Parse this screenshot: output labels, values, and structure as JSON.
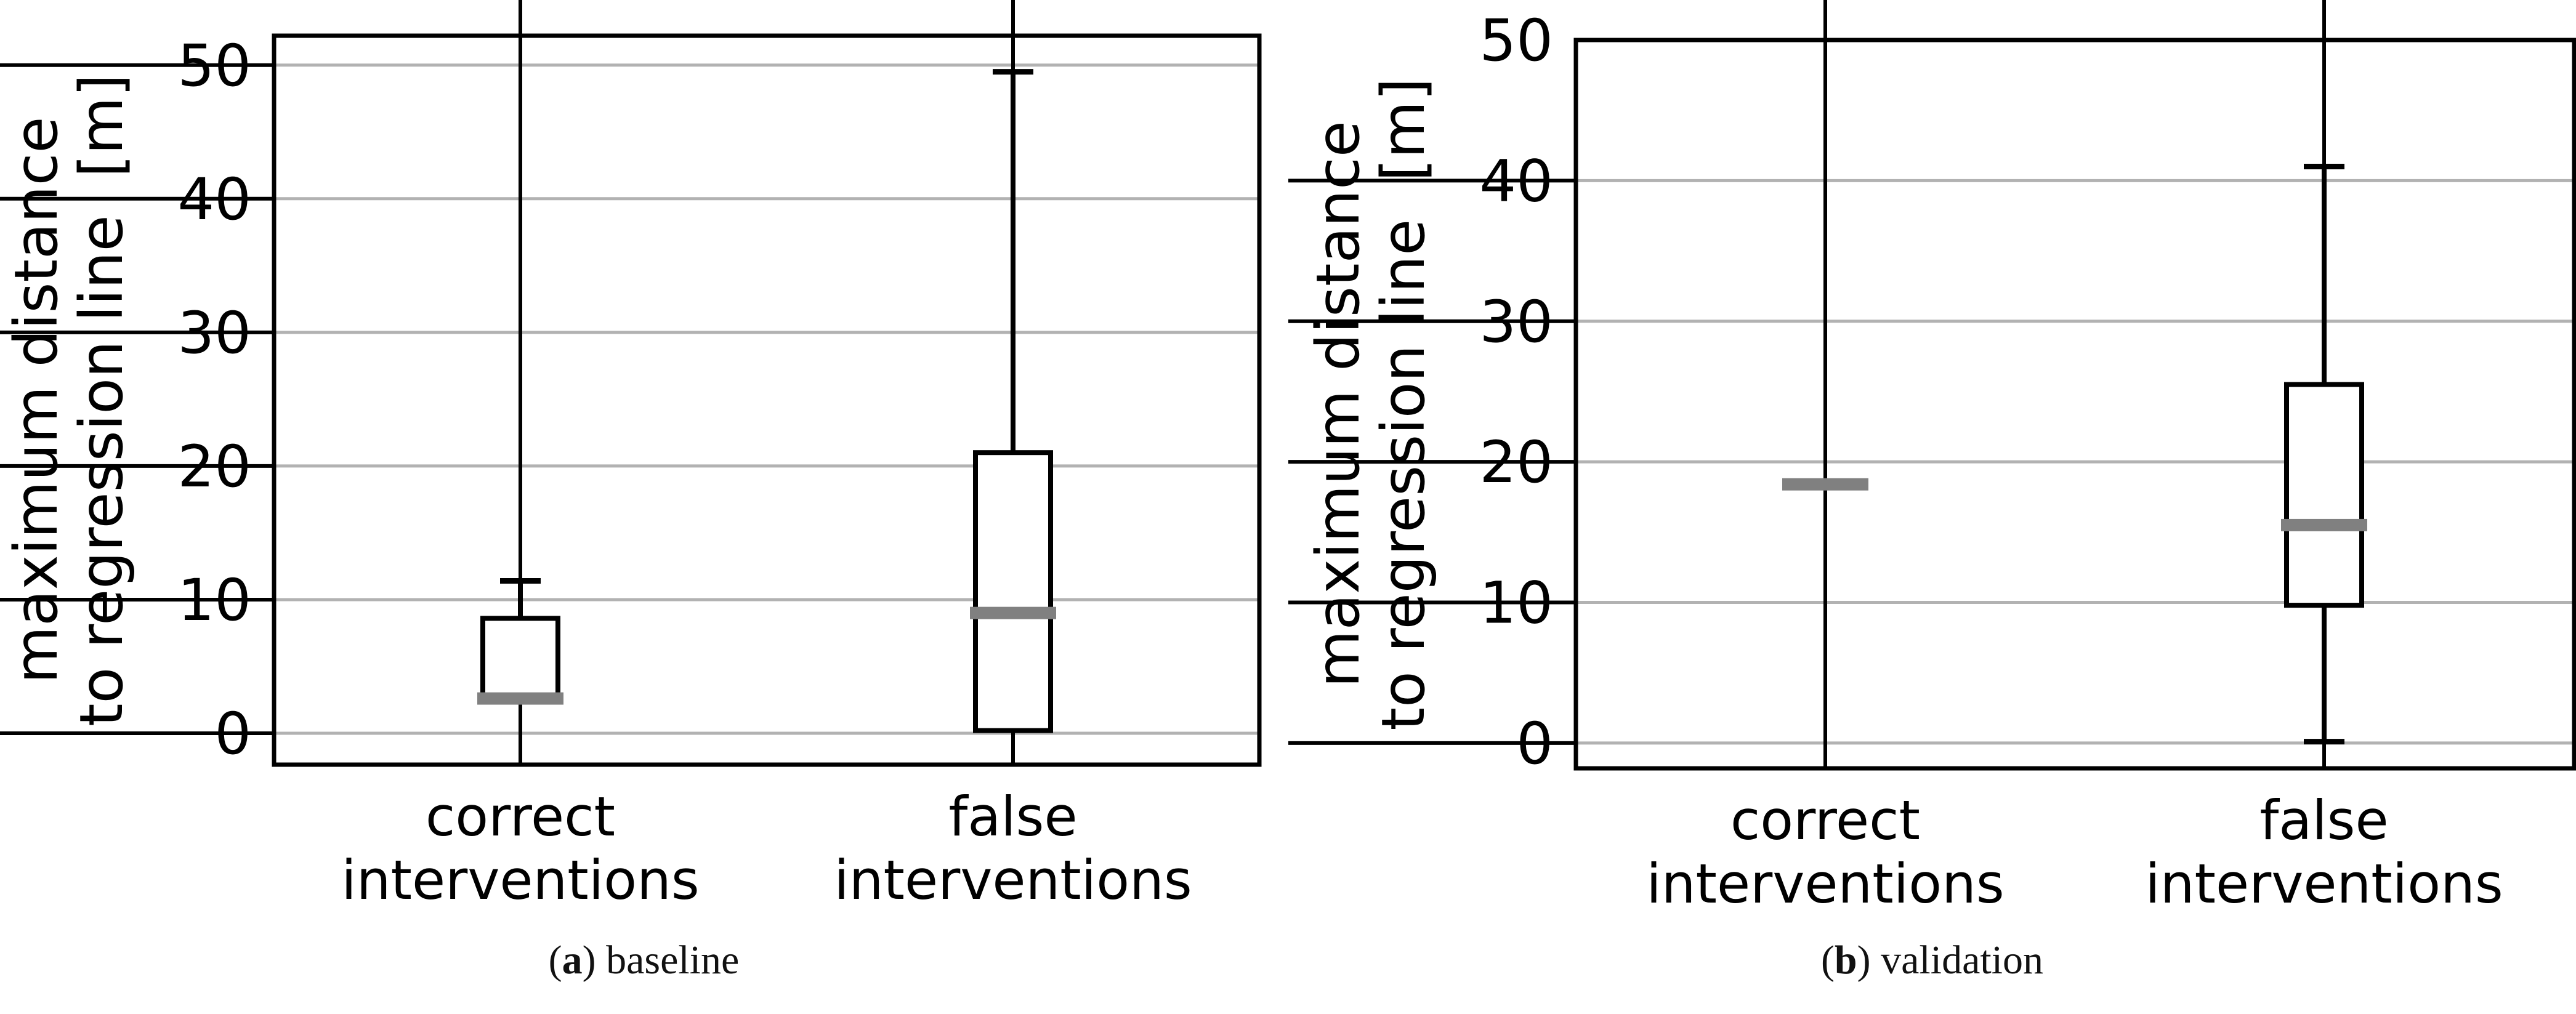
{
  "figure": {
    "background": "#ffffff",
    "panels": [
      {
        "caption": {
          "open": "(",
          "letter": "a",
          "close": ") ",
          "text": "baseline"
        }
      },
      {
        "caption": {
          "open": "(",
          "letter": "b",
          "close": ") ",
          "text": "validation"
        }
      }
    ]
  },
  "style": {
    "line_color": "#000000",
    "grid_color": "#b2b2b2",
    "median_color": "#808080",
    "box_fill": "#ffffff",
    "text_color": "#000000"
  },
  "chart_data": [
    {
      "type": "boxplot",
      "panel": "a",
      "caption_text": "baseline",
      "ylabel": "maximum distance to regression line [m]",
      "ylabel_lines": [
        "maximum distance",
        "to regression line  [m]"
      ],
      "yticks": [
        0,
        10,
        20,
        30,
        40,
        50
      ],
      "ytick_labels": [
        "0",
        "10",
        "20",
        "30",
        "40",
        "50"
      ],
      "ylim": [
        -2.35,
        52.2
      ],
      "grid": true,
      "legend": "none",
      "categories": [
        [
          "correct",
          "interventions"
        ],
        [
          "false",
          "interventions"
        ]
      ],
      "boxes": [
        {
          "category": "correct interventions",
          "whisker_low": null,
          "q1": 2.4,
          "median": 2.6,
          "q3": 8.6,
          "whisker_high": 11.4,
          "degenerate": false
        },
        {
          "category": "false interventions",
          "whisker_low": null,
          "q1": 0.2,
          "median": 9.0,
          "q3": 21.0,
          "whisker_high": 49.5,
          "degenerate": false
        }
      ]
    },
    {
      "type": "boxplot",
      "panel": "b",
      "caption_text": "validation",
      "ylabel": "maximum distance to regression line [m]",
      "ylabel_lines": [
        "maximum distance",
        "to regression line  [m]"
      ],
      "yticks": [
        0,
        10,
        20,
        30,
        40,
        50
      ],
      "ytick_labels": [
        "0",
        "10",
        "20",
        "30",
        "40",
        "50"
      ],
      "ylim": [
        -1.8,
        50
      ],
      "grid": true,
      "legend": "none",
      "categories": [
        [
          "correct",
          "interventions"
        ],
        [
          "false",
          "interventions"
        ]
      ],
      "boxes": [
        {
          "category": "correct interventions",
          "whisker_low": null,
          "q1": 18.4,
          "median": 18.4,
          "q3": 18.4,
          "whisker_high": null,
          "degenerate": true
        },
        {
          "category": "false interventions",
          "whisker_low": 0.1,
          "q1": 9.8,
          "median": 15.5,
          "q3": 25.5,
          "whisker_high": 41.0,
          "degenerate": false
        }
      ]
    }
  ]
}
